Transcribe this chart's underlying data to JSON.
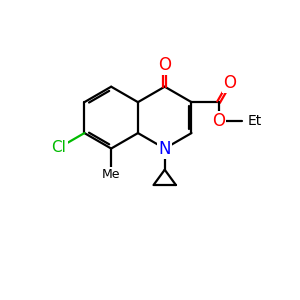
{
  "bg_color": "#ffffff",
  "bond_color": "#000000",
  "N_color": "#0000ff",
  "O_color": "#ff0000",
  "Cl_color": "#00bb00",
  "lw": 1.6,
  "figsize": [
    3.0,
    3.0
  ],
  "dpi": 100,
  "xlim": [
    0,
    10
  ],
  "ylim": [
    0,
    10
  ]
}
